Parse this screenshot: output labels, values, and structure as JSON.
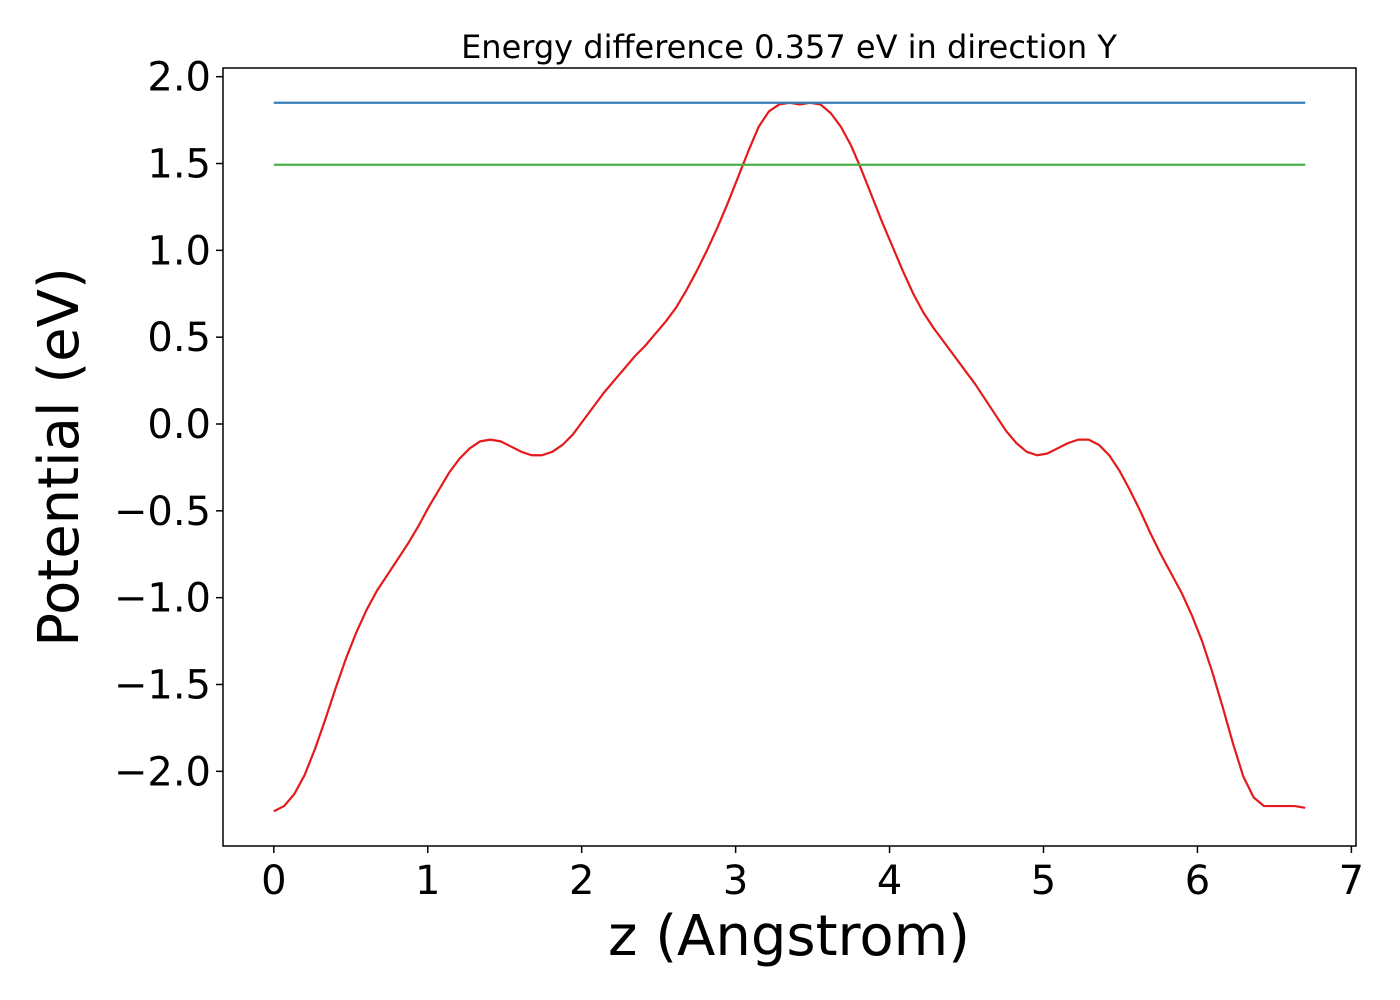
{
  "chart_data": {
    "type": "line",
    "title": "Energy difference 0.357 eV in direction Y",
    "xlabel": "z (Angstrom)",
    "ylabel": "Potential (eV)",
    "xlim": [
      -0.33,
      7.03
    ],
    "ylim": [
      -2.43,
      2.05
    ],
    "xticks": [
      0,
      1,
      2,
      3,
      4,
      5,
      6,
      7
    ],
    "xtick_labels": [
      "0",
      "1",
      "2",
      "3",
      "4",
      "5",
      "6",
      "7"
    ],
    "yticks": [
      2.0,
      1.5,
      1.0,
      0.5,
      0.0,
      -0.5,
      -1.0,
      -1.5,
      -2.0
    ],
    "ytick_labels": [
      "2.0",
      "1.5",
      "1.0",
      "0.5",
      "0.0",
      "−0.5",
      "−1.0",
      "−1.5",
      "−2.0"
    ],
    "grid": false,
    "legend": "none",
    "series": [
      {
        "color": "#e41a1c",
        "x": [
          0.0,
          0.067,
          0.134,
          0.201,
          0.268,
          0.335,
          0.402,
          0.469,
          0.536,
          0.603,
          0.67,
          0.737,
          0.804,
          0.871,
          0.938,
          1.005,
          1.072,
          1.139,
          1.206,
          1.273,
          1.34,
          1.407,
          1.474,
          1.541,
          1.608,
          1.675,
          1.742,
          1.809,
          1.876,
          1.943,
          2.01,
          2.077,
          2.144,
          2.211,
          2.278,
          2.345,
          2.412,
          2.479,
          2.546,
          2.613,
          2.68,
          2.747,
          2.814,
          2.881,
          2.948,
          3.015,
          3.082,
          3.149,
          3.216,
          3.283,
          3.35,
          3.417,
          3.484,
          3.551,
          3.618,
          3.685,
          3.752,
          3.819,
          3.886,
          3.953,
          4.02,
          4.087,
          4.154,
          4.221,
          4.288,
          4.355,
          4.422,
          4.489,
          4.556,
          4.623,
          4.69,
          4.757,
          4.824,
          4.891,
          4.958,
          5.025,
          5.092,
          5.159,
          5.226,
          5.293,
          5.36,
          5.427,
          5.494,
          5.561,
          5.628,
          5.695,
          5.762,
          5.829,
          5.896,
          5.963,
          6.03,
          6.097,
          6.164,
          6.231,
          6.298,
          6.365,
          6.432,
          6.499,
          6.566,
          6.633,
          6.7
        ],
        "y": [
          -2.23,
          -2.2,
          -2.13,
          -2.02,
          -1.87,
          -1.7,
          -1.52,
          -1.35,
          -1.2,
          -1.07,
          -0.96,
          -0.87,
          -0.78,
          -0.69,
          -0.59,
          -0.48,
          -0.38,
          -0.28,
          -0.2,
          -0.14,
          -0.1,
          -0.09,
          -0.1,
          -0.13,
          -0.16,
          -0.18,
          -0.18,
          -0.16,
          -0.12,
          -0.06,
          0.02,
          0.1,
          0.18,
          0.25,
          0.32,
          0.39,
          0.45,
          0.52,
          0.59,
          0.67,
          0.77,
          0.88,
          1.0,
          1.13,
          1.27,
          1.42,
          1.57,
          1.71,
          1.8,
          1.84,
          1.85,
          1.84,
          1.85,
          1.84,
          1.79,
          1.71,
          1.6,
          1.46,
          1.31,
          1.16,
          1.02,
          0.88,
          0.75,
          0.64,
          0.55,
          0.47,
          0.39,
          0.31,
          0.23,
          0.14,
          0.05,
          -0.04,
          -0.11,
          -0.16,
          -0.18,
          -0.17,
          -0.14,
          -0.11,
          -0.09,
          -0.09,
          -0.12,
          -0.18,
          -0.27,
          -0.38,
          -0.5,
          -0.63,
          -0.75,
          -0.86,
          -0.97,
          -1.1,
          -1.25,
          -1.43,
          -1.63,
          -1.84,
          -2.03,
          -2.15,
          -2.2,
          -2.2,
          -2.2,
          -2.2,
          -2.21
        ]
      },
      {
        "color": "#377eb8",
        "x": [
          0.0,
          6.7
        ],
        "y": [
          1.85,
          1.85
        ]
      },
      {
        "color": "#4daf4a",
        "x": [
          0.0,
          6.7
        ],
        "y": [
          1.493,
          1.493
        ]
      }
    ]
  }
}
